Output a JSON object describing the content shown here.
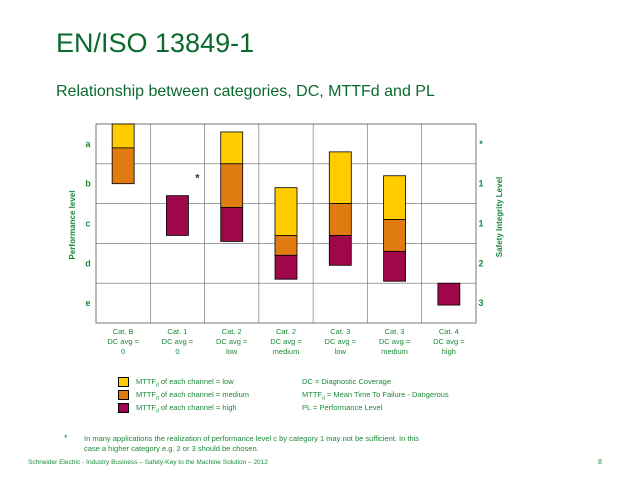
{
  "page": {
    "title": "EN/ISO 13849-1",
    "subtitle": "Relationship between categories, DC, MTTFd and PL"
  },
  "chart_data": {
    "type": "bar",
    "ylabel": "Performance level",
    "y2label": "Safety Integrity Level",
    "levels": [
      "a",
      "b",
      "c",
      "d",
      "e"
    ],
    "sil_labels": [
      "*",
      "1",
      "1",
      "2",
      "3"
    ],
    "categories": [
      {
        "name": "Cat. B",
        "dc": "DC avg =",
        "dc_value": "0"
      },
      {
        "name": "Cat. 1",
        "dc": "DC avg =",
        "dc_value": "0"
      },
      {
        "name": "Cat. 2",
        "dc": "DC avg =",
        "dc_value": "low"
      },
      {
        "name": "Cat. 2",
        "dc": "DC avg =",
        "dc_value": "medium"
      },
      {
        "name": "Cat. 3",
        "dc": "DC avg =",
        "dc_value": "low"
      },
      {
        "name": "Cat. 3",
        "dc": "DC avg =",
        "dc_value": "medium"
      },
      {
        "name": "Cat. 4",
        "dc": "DC avg =",
        "dc_value": "high"
      }
    ],
    "pl_scale": "row units: 0 = top of level a, 5 = bottom of level e",
    "series": [
      {
        "name": "low",
        "color": "#FFCC00",
        "segments": [
          [
            0,
            0.6
          ],
          null,
          [
            0.2,
            1.0
          ],
          [
            1.6,
            2.8
          ],
          [
            0.7,
            2.0
          ],
          [
            1.3,
            2.4
          ],
          null
        ]
      },
      {
        "name": "medium",
        "color": "#E07B10",
        "segments": [
          [
            0.6,
            1.5
          ],
          null,
          [
            1.0,
            2.1
          ],
          [
            2.8,
            3.3
          ],
          [
            2.0,
            2.8
          ],
          [
            2.4,
            3.2
          ],
          null
        ]
      },
      {
        "name": "high",
        "color": "#A0064A",
        "segments": [
          null,
          [
            1.8,
            2.8
          ],
          [
            2.1,
            2.95
          ],
          [
            3.3,
            3.9
          ],
          [
            2.8,
            3.55
          ],
          [
            3.2,
            3.95
          ],
          [
            4.0,
            4.55
          ]
        ]
      }
    ],
    "annotations": [
      {
        "text": "*",
        "near": "Cat. 1, level b"
      }
    ]
  },
  "legend": {
    "items": [
      {
        "text": "MTTF",
        "sub": "d",
        "rest": " of each channel = low",
        "color": "#FFCC00"
      },
      {
        "text": "MTTF",
        "sub": "d",
        "rest": " of each channel = medium",
        "color": "#E07B10"
      },
      {
        "text": "MTTF",
        "sub": "d",
        "rest": " of each channel = high",
        "color": "#A0064A"
      }
    ],
    "definitions": [
      {
        "text": "DC = Diagnostic Coverage",
        "sub": "",
        "rest": ""
      },
      {
        "text": "MTTF",
        "sub": "d",
        "rest": " = Mean Time To Failure - Dangerous"
      },
      {
        "text": "PL = Performance Level",
        "sub": "",
        "rest": ""
      }
    ]
  },
  "note": {
    "star": "*",
    "text": "In many applications the realization of performance level c by category 1 may not be sufficient. In this case a higher category e.g. 2 or 3 should be chosen."
  },
  "footer": {
    "text": "Schneider Electric - Industry Business – Safety-Key to the Machine Solution – 2012",
    "page_number": "8"
  }
}
